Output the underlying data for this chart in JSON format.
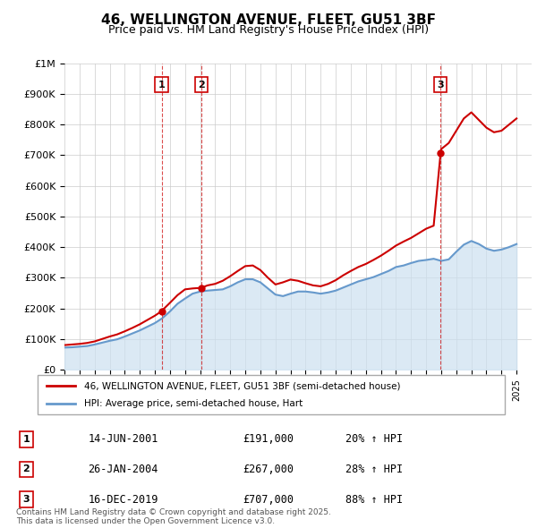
{
  "title": "46, WELLINGTON AVENUE, FLEET, GU51 3BF",
  "subtitle": "Price paid vs. HM Land Registry's House Price Index (HPI)",
  "ylim": [
    0,
    1000000
  ],
  "yticks": [
    0,
    100000,
    200000,
    300000,
    400000,
    500000,
    600000,
    700000,
    800000,
    900000,
    1000000
  ],
  "ytick_labels": [
    "£0",
    "£100K",
    "£200K",
    "£300K",
    "£400K",
    "£500K",
    "£600K",
    "£700K",
    "£800K",
    "£900K",
    "£1M"
  ],
  "xlim_start": 1995.0,
  "xlim_end": 2026.0,
  "sale_color": "#cc0000",
  "hpi_color": "#6699cc",
  "hpi_fill_color": "#cce0f0",
  "background_color": "#ffffff",
  "grid_color": "#cccccc",
  "legend_label_sale": "46, WELLINGTON AVENUE, FLEET, GU51 3BF (semi-detached house)",
  "legend_label_hpi": "HPI: Average price, semi-detached house, Hart",
  "transactions": [
    {
      "num": 1,
      "date": "14-JUN-2001",
      "price": 191000,
      "hpi_pct": "20%",
      "x": 2001.45
    },
    {
      "num": 2,
      "date": "26-JAN-2004",
      "price": 267000,
      "hpi_pct": "28%",
      "x": 2004.07
    },
    {
      "num": 3,
      "date": "16-DEC-2019",
      "price": 707000,
      "hpi_pct": "88%",
      "x": 2019.96
    }
  ],
  "footer": "Contains HM Land Registry data © Crown copyright and database right 2025.\nThis data is licensed under the Open Government Licence v3.0.",
  "hpi_series_x": [
    1995.0,
    1995.5,
    1996.0,
    1996.5,
    1997.0,
    1997.5,
    1998.0,
    1998.5,
    1999.0,
    1999.5,
    2000.0,
    2000.5,
    2001.0,
    2001.5,
    2002.0,
    2002.5,
    2003.0,
    2003.5,
    2004.0,
    2004.5,
    2005.0,
    2005.5,
    2006.0,
    2006.5,
    2007.0,
    2007.5,
    2008.0,
    2008.5,
    2009.0,
    2009.5,
    2010.0,
    2010.5,
    2011.0,
    2011.5,
    2012.0,
    2012.5,
    2013.0,
    2013.5,
    2014.0,
    2014.5,
    2015.0,
    2015.5,
    2016.0,
    2016.5,
    2017.0,
    2017.5,
    2018.0,
    2018.5,
    2019.0,
    2019.5,
    2020.0,
    2020.5,
    2021.0,
    2021.5,
    2022.0,
    2022.5,
    2023.0,
    2023.5,
    2024.0,
    2024.5,
    2025.0
  ],
  "hpi_series_y": [
    72000,
    73000,
    75000,
    77000,
    82000,
    88000,
    94000,
    99000,
    108000,
    118000,
    128000,
    140000,
    152000,
    168000,
    190000,
    215000,
    232000,
    248000,
    255000,
    258000,
    260000,
    262000,
    272000,
    285000,
    295000,
    295000,
    285000,
    265000,
    245000,
    240000,
    248000,
    255000,
    255000,
    252000,
    248000,
    252000,
    258000,
    268000,
    278000,
    288000,
    295000,
    302000,
    312000,
    322000,
    335000,
    340000,
    348000,
    355000,
    358000,
    362000,
    355000,
    360000,
    385000,
    408000,
    420000,
    410000,
    395000,
    388000,
    392000,
    400000,
    410000
  ],
  "sale_series_x": [
    1995.0,
    1995.5,
    1996.0,
    1996.5,
    1997.0,
    1997.5,
    1998.0,
    1998.5,
    1999.0,
    1999.5,
    2000.0,
    2000.5,
    2001.0,
    2001.45,
    2001.5,
    2002.0,
    2002.5,
    2003.0,
    2003.5,
    2004.07,
    2004.5,
    2005.0,
    2005.5,
    2006.0,
    2006.5,
    2007.0,
    2007.5,
    2008.0,
    2008.5,
    2009.0,
    2009.5,
    2010.0,
    2010.5,
    2011.0,
    2011.5,
    2012.0,
    2012.5,
    2013.0,
    2013.5,
    2014.0,
    2014.5,
    2015.0,
    2015.5,
    2016.0,
    2016.5,
    2017.0,
    2017.5,
    2018.0,
    2018.5,
    2019.0,
    2019.5,
    2019.96,
    2020.0,
    2020.5,
    2021.0,
    2021.5,
    2022.0,
    2022.5,
    2023.0,
    2023.5,
    2024.0,
    2024.5,
    2025.0
  ],
  "sale_series_y": [
    80000,
    82000,
    84000,
    87000,
    92000,
    100000,
    108000,
    115000,
    125000,
    136000,
    148000,
    162000,
    176000,
    191000,
    194000,
    218000,
    243000,
    262000,
    265000,
    267000,
    275000,
    280000,
    290000,
    305000,
    322000,
    338000,
    340000,
    325000,
    300000,
    278000,
    285000,
    294000,
    290000,
    282000,
    275000,
    272000,
    280000,
    292000,
    308000,
    322000,
    335000,
    345000,
    358000,
    372000,
    388000,
    405000,
    418000,
    430000,
    445000,
    460000,
    470000,
    707000,
    720000,
    740000,
    780000,
    820000,
    840000,
    815000,
    790000,
    775000,
    780000,
    800000,
    820000
  ]
}
